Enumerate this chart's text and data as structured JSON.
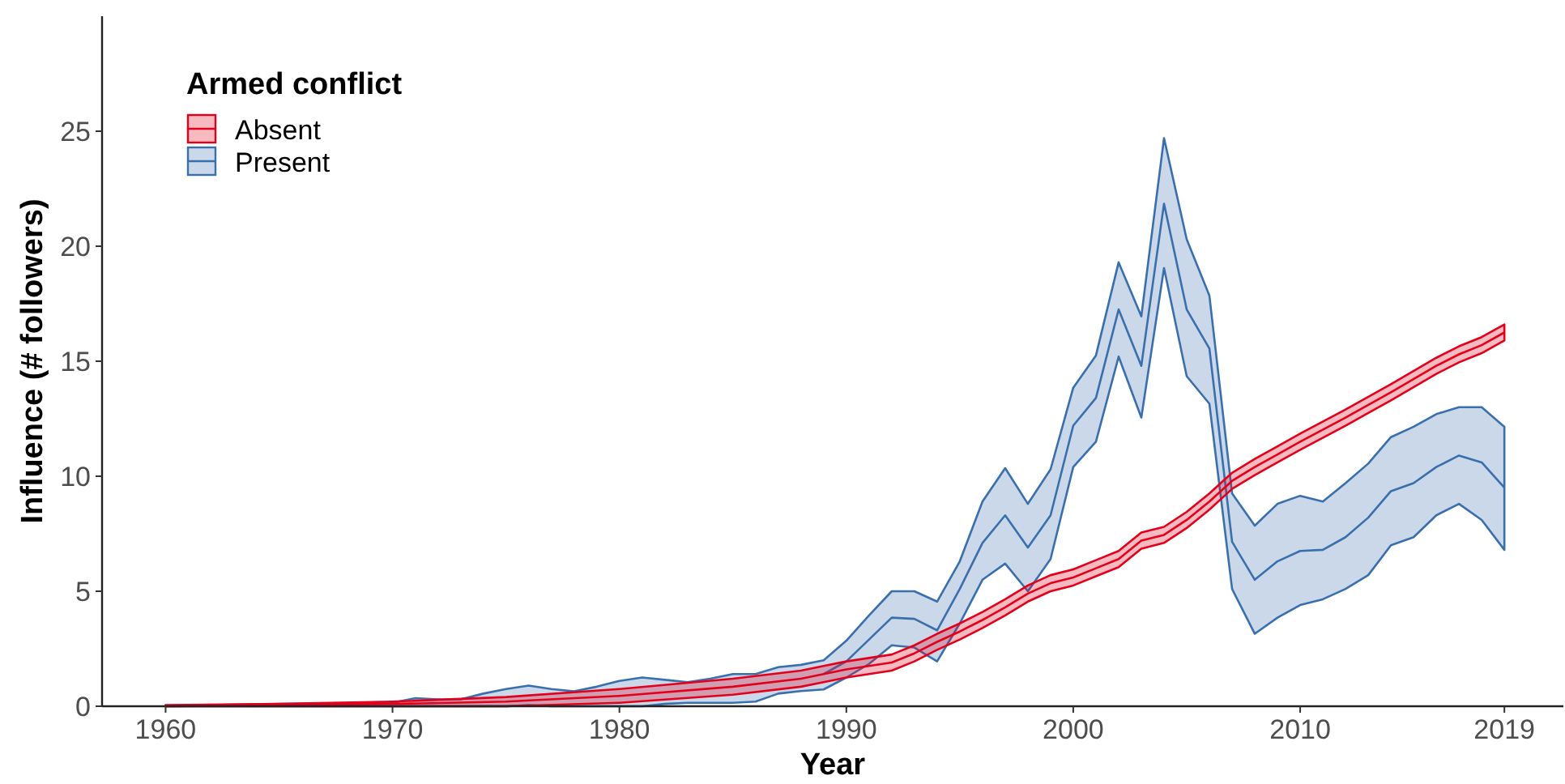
{
  "chart_data": {
    "type": "line",
    "xlabel": "Year",
    "ylabel": "Influence (# followers)",
    "legend_title": "Armed conflict",
    "legend": "top left",
    "grid": false,
    "line_style": "solid",
    "marker": "none",
    "xlim": [
      1957.2,
      2021.6
    ],
    "xticks": [
      1960,
      1970,
      1980,
      1990,
      2000,
      2010,
      2019
    ],
    "ylim": [
      0,
      30
    ],
    "yticks": [
      0,
      5,
      10,
      15,
      20,
      25
    ],
    "series": [
      {
        "name": "Absent",
        "color": "#e3001b",
        "x": [
          1960,
          1965,
          1970,
          1975,
          1980,
          1985,
          1988,
          1989,
          1990,
          1991,
          1992,
          1993,
          1994,
          1995,
          1996,
          1997,
          1998,
          1999,
          2000,
          2001,
          2002,
          2003,
          2004,
          2005,
          2006,
          2007,
          2008,
          2009,
          2010,
          2012,
          2014,
          2016,
          2017,
          2018,
          2019
        ],
        "values": [
          0,
          0.05,
          0.1,
          0.2,
          0.45,
          0.85,
          1.2,
          1.4,
          1.6,
          1.75,
          1.9,
          2.3,
          2.8,
          3.25,
          3.75,
          4.3,
          4.9,
          5.35,
          5.6,
          6.0,
          6.4,
          7.2,
          7.45,
          8.1,
          8.9,
          9.8,
          10.4,
          10.95,
          11.5,
          12.55,
          13.65,
          14.8,
          15.3,
          15.7,
          16.25
        ],
        "lower": [
          0,
          0,
          0,
          0,
          0.15,
          0.5,
          0.85,
          1.05,
          1.25,
          1.4,
          1.55,
          1.95,
          2.45,
          2.9,
          3.4,
          3.95,
          4.55,
          5.0,
          5.25,
          5.65,
          6.05,
          6.85,
          7.1,
          7.75,
          8.55,
          9.45,
          10.05,
          10.6,
          11.15,
          12.2,
          13.3,
          14.45,
          14.95,
          15.35,
          15.9
        ],
        "upper": [
          0.05,
          0.1,
          0.2,
          0.4,
          0.75,
          1.2,
          1.55,
          1.75,
          1.95,
          2.1,
          2.25,
          2.65,
          3.15,
          3.6,
          4.1,
          4.65,
          5.25,
          5.7,
          5.95,
          6.35,
          6.75,
          7.55,
          7.8,
          8.45,
          9.25,
          10.15,
          10.75,
          11.3,
          11.85,
          12.9,
          14.0,
          15.15,
          15.65,
          16.05,
          16.6
        ]
      },
      {
        "name": "Present",
        "color": "#3a6fad",
        "x": [
          1960,
          1965,
          1970,
          1971,
          1972,
          1973,
          1974,
          1975,
          1976,
          1977,
          1978,
          1979,
          1980,
          1981,
          1982,
          1983,
          1984,
          1985,
          1986,
          1987,
          1988,
          1989,
          1990,
          1991,
          1992,
          1993,
          1994,
          1995,
          1996,
          1997,
          1998,
          1999,
          2000,
          2001,
          2002,
          2003,
          2004,
          2005,
          2006,
          2007,
          2008,
          2009,
          2010,
          2011,
          2012,
          2013,
          2014,
          2015,
          2016,
          2017,
          2018,
          2019
        ],
        "values": [
          null,
          null,
          null,
          null,
          null,
          null,
          null,
          null,
          null,
          null,
          null,
          null,
          null,
          null,
          null,
          null,
          null,
          null,
          null,
          null,
          null,
          1.4,
          1.95,
          2.9,
          3.85,
          3.8,
          3.3,
          5.1,
          7.1,
          8.3,
          6.9,
          8.3,
          12.2,
          13.4,
          17.25,
          14.8,
          21.85,
          17.25,
          15.55,
          7.15,
          5.5,
          6.3,
          6.75,
          6.8,
          7.35,
          8.2,
          9.35,
          9.7,
          10.4,
          10.9,
          10.6,
          9.5
        ],
        "lower": [
          0,
          0,
          0,
          0,
          0,
          0,
          0,
          0,
          0.05,
          0,
          0,
          0,
          0,
          0,
          0.1,
          0.15,
          0.15,
          0.15,
          0.2,
          0.55,
          0.66,
          0.73,
          1.25,
          1.84,
          2.65,
          2.55,
          1.95,
          3.6,
          5.5,
          6.2,
          5.0,
          6.4,
          10.4,
          11.5,
          15.2,
          12.55,
          19.05,
          14.35,
          13.15,
          5.1,
          3.15,
          3.85,
          4.4,
          4.65,
          5.1,
          5.7,
          7.0,
          7.35,
          8.3,
          8.8,
          8.1,
          6.8
        ],
        "upper": [
          0.02,
          0.1,
          0.15,
          0.35,
          0.3,
          0.3,
          0.55,
          0.75,
          0.9,
          0.75,
          0.65,
          0.85,
          1.1,
          1.25,
          1.15,
          1.05,
          1.2,
          1.4,
          1.4,
          1.7,
          1.8,
          2.0,
          2.85,
          3.95,
          5.0,
          5.0,
          4.55,
          6.3,
          8.9,
          10.35,
          8.8,
          10.3,
          13.85,
          15.25,
          19.3,
          16.95,
          24.7,
          20.3,
          17.85,
          9.25,
          7.85,
          8.8,
          9.15,
          8.9,
          9.7,
          10.55,
          11.7,
          12.15,
          12.7,
          13.0,
          13.0,
          12.15
        ]
      }
    ]
  }
}
